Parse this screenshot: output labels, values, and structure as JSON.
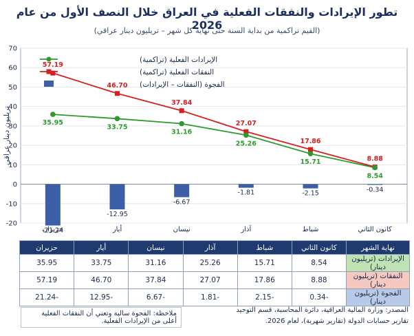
{
  "chart_data": {
    "type": "line",
    "title": "تطور الإيرادات والنفقات الفعلية في العراق خلال النصف الأول من عام 2026",
    "subtitle": "(القيم تراكمية من بداية السنة حتى نهاية كل شهر – تريليون دينار عراقي)",
    "ylabel": "تريليون دينار عراقي",
    "ylim": [
      -20,
      70
    ],
    "yticks": [
      -20,
      -10,
      0,
      10,
      20,
      30,
      40,
      50,
      60,
      70
    ],
    "grid": true,
    "legend_position": "top-left",
    "categories": [
      "كانون الثاني",
      "شباط",
      "آذار",
      "نيسان",
      "أيار",
      "حزيران"
    ],
    "series": [
      {
        "name": "الإيرادات الفعلية (تراكمية)",
        "kind": "line",
        "color": "#2e9a2e",
        "values": [
          8.54,
          15.71,
          25.26,
          31.16,
          33.75,
          35.95
        ],
        "labels": [
          "8.54",
          "15.71",
          "25.26",
          "31.16",
          "33.75",
          "35.95"
        ]
      },
      {
        "name": "النفقات الفعلية (تراكمية)",
        "kind": "line",
        "color": "#d42020",
        "values": [
          8.88,
          17.86,
          27.07,
          37.84,
          46.7,
          57.19
        ],
        "labels": [
          "8.88",
          "17.86",
          "27.07",
          "37.84",
          "46.70",
          "57.19"
        ]
      },
      {
        "name": "الفجوة (النفقات – الإيرادات)",
        "kind": "bar",
        "color": "#3d5fa8",
        "values": [
          -0.34,
          -2.15,
          -1.81,
          -6.67,
          -12.95,
          -21.24
        ],
        "labels": [
          "-0.34",
          "-2.15",
          "-1.81",
          "-6.67",
          "-12.95",
          "-21.24"
        ]
      }
    ]
  },
  "table": {
    "header_label": "نهاية الشهر",
    "months": [
      "كانون الثاني",
      "شباط",
      "آذار",
      "نيسان",
      "أيار",
      "حزيران"
    ],
    "rows": [
      {
        "label": "الإيرادات (تريليون دينار)",
        "cells": [
          "8.54",
          "15.71",
          "25.26",
          "31.16",
          "33.75",
          "35.95"
        ]
      },
      {
        "label": "النفقات (تريليون دينار)",
        "cells": [
          "8.88",
          "17.86",
          "27.07",
          "37.84",
          "46.70",
          "57.19"
        ]
      },
      {
        "label": "الفجوة (تريليون دينار)",
        "cells": [
          "-0.34",
          "-2.15",
          "-1.81",
          "-6.67",
          "-12.95",
          "-21.24"
        ]
      }
    ]
  },
  "note": "ملاحظة: الفجوة سالبة وتعني أن النفقات الفعلية أعلى من الإيرادات الفعلية.",
  "source_line1": "المصدر: وزارة المالية العراقية، دائرة المحاسبة، قسم التوحيد",
  "source_line2": "تقارير حسابات الدولة (تقارير شهرية)، لعام 2026."
}
